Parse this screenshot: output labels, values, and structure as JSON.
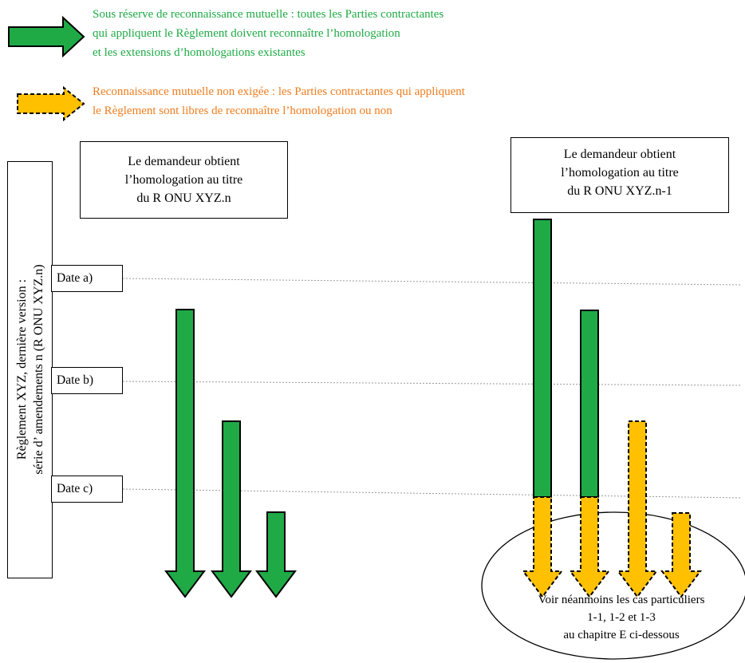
{
  "legend": {
    "green_text": [
      "Sous réserve de reconnaissance mutuelle : toutes les Parties contractantes",
      "qui appliquent le Règlement doivent reconnaître l’homologation",
      "et les extensions d’homologations existantes"
    ],
    "orange_text": [
      "Reconnaissance mutuelle non exigée : les Parties contractantes qui appliquent",
      "le Règlement sont libres de reconnaître l’homologation ou non"
    ]
  },
  "left_box": [
    "Le demandeur obtient",
    "l’homologation au titre",
    "du R ONU  XYZ.n"
  ],
  "right_box": [
    "Le demandeur obtient",
    "l’homologation au titre",
    "du R ONU  XYZ.n-1"
  ],
  "side_label": [
    "Règlement XYZ, dernière version :",
    "série d’  amendements n (R ONU XYZ.n)"
  ],
  "dates": [
    "Date a)",
    "Date b)",
    "Date c)"
  ],
  "note": [
    "Voir néanmoins les cas particuliers",
    "1-1, 1-2 et 1-3",
    "au chapitre E ci-dessous"
  ],
  "colors": {
    "green": "#1faa46",
    "orange": "#ffc000",
    "green_text": "#1faa46",
    "orange_text": "#f07d1e"
  }
}
